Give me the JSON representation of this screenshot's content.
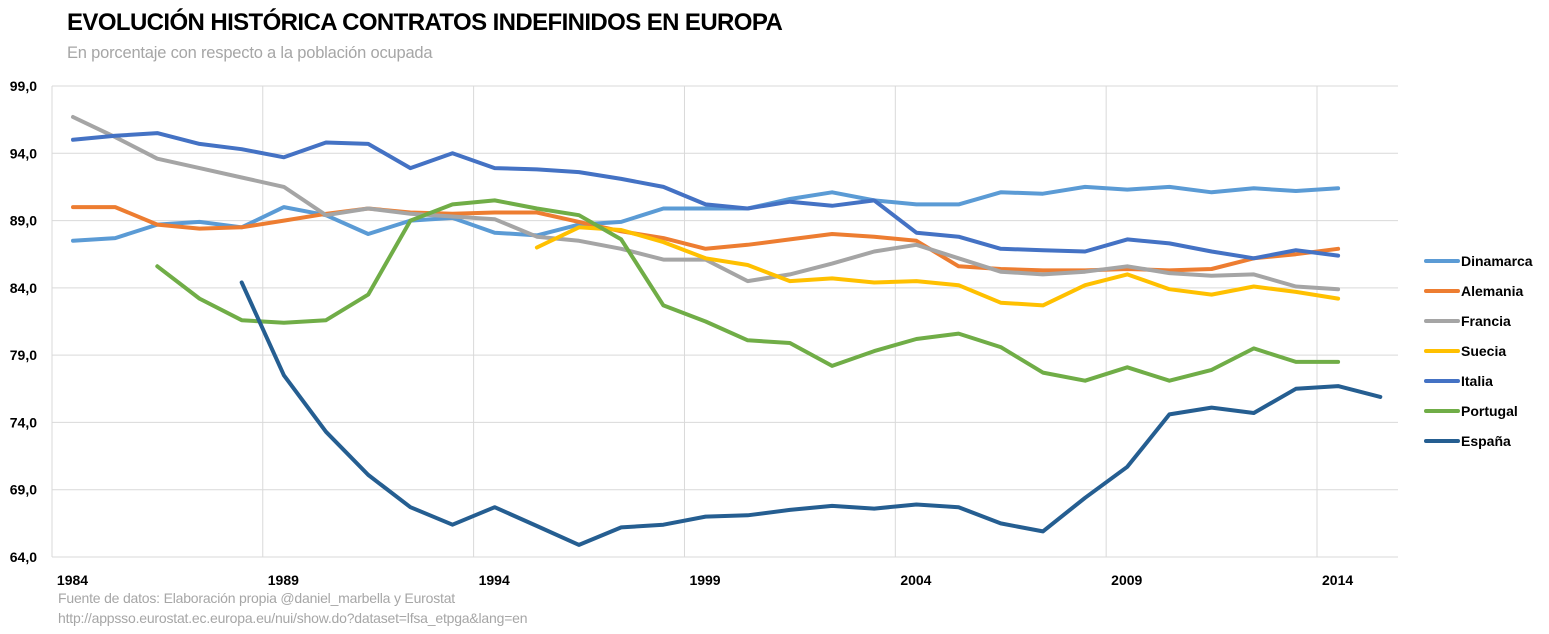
{
  "header": {
    "title": "EVOLUCIÓN HISTÓRICA CONTRATOS INDEFINIDOS EN EUROPA",
    "subtitle": "En porcentaje con respecto a la población ocupada"
  },
  "footer": {
    "source_line1": "Fuente de datos: Elaboración propia @daniel_marbella y Eurostat",
    "source_line2": "http://appsso.eurostat.ec.europa.eu/nui/show.do?dataset=lfsa_etpga&lang=en"
  },
  "chart_data": {
    "type": "line",
    "title": "EVOLUCIÓN HISTÓRICA CONTRATOS INDEFINIDOS EN EUROPA",
    "subtitle": "En porcentaje con respecto a la población ocupada",
    "xlabel": "",
    "ylabel": "",
    "ylim": [
      64.0,
      99.0
    ],
    "xlim": [
      1984,
      2015
    ],
    "yticks": [
      "64,0",
      "69,0",
      "74,0",
      "79,0",
      "84,0",
      "89,0",
      "94,0",
      "99,0"
    ],
    "ytick_values": [
      64,
      69,
      74,
      79,
      84,
      89,
      94,
      99
    ],
    "xticks": [
      "1984",
      "1989",
      "1994",
      "1999",
      "2004",
      "2009",
      "2014"
    ],
    "xtick_values": [
      1984,
      1989,
      1994,
      1999,
      2004,
      2009,
      2014
    ],
    "grid": true,
    "legend_position": "right",
    "x": [
      1984,
      1985,
      1986,
      1987,
      1988,
      1989,
      1990,
      1991,
      1992,
      1993,
      1994,
      1995,
      1996,
      1997,
      1998,
      1999,
      2000,
      2001,
      2002,
      2003,
      2004,
      2005,
      2006,
      2007,
      2008,
      2009,
      2010,
      2011,
      2012,
      2013,
      2014,
      2015
    ],
    "series": [
      {
        "name": "Dinamarca",
        "color": "#5B9BD5",
        "values": [
          87.5,
          87.7,
          88.7,
          88.9,
          88.5,
          90.0,
          89.4,
          88.0,
          89.0,
          89.2,
          88.1,
          87.9,
          88.7,
          88.9,
          89.9,
          89.9,
          89.9,
          90.6,
          91.1,
          90.5,
          90.2,
          90.2,
          91.1,
          91.0,
          91.5,
          91.3,
          91.5,
          91.1,
          91.4,
          91.2,
          91.4,
          null
        ]
      },
      {
        "name": "Alemania",
        "color": "#ED7D31",
        "values": [
          90.0,
          90.0,
          88.7,
          88.4,
          88.5,
          89.0,
          89.5,
          89.9,
          89.6,
          89.5,
          89.6,
          89.6,
          88.9,
          88.2,
          87.7,
          86.9,
          87.2,
          87.6,
          88.0,
          87.8,
          87.5,
          85.6,
          85.4,
          85.3,
          85.3,
          85.4,
          85.3,
          85.4,
          86.2,
          86.5,
          86.9,
          null
        ]
      },
      {
        "name": "Francia",
        "color": "#A5A5A5",
        "values": [
          96.7,
          95.2,
          93.6,
          92.9,
          92.2,
          91.5,
          89.4,
          89.9,
          89.5,
          89.3,
          89.1,
          87.8,
          87.5,
          86.9,
          86.1,
          86.1,
          84.5,
          85.0,
          85.8,
          86.7,
          87.2,
          86.2,
          85.2,
          85.0,
          85.2,
          85.6,
          85.1,
          84.9,
          85.0,
          84.1,
          83.9,
          null
        ]
      },
      {
        "name": "Suecia",
        "color": "#FFC000",
        "values": [
          null,
          null,
          null,
          null,
          null,
          null,
          null,
          null,
          null,
          null,
          null,
          87.0,
          88.5,
          88.3,
          87.4,
          86.2,
          85.7,
          84.5,
          84.7,
          84.4,
          84.5,
          84.2,
          82.9,
          82.7,
          84.2,
          85.0,
          83.9,
          83.5,
          84.1,
          83.7,
          83.2,
          null
        ]
      },
      {
        "name": "Italia",
        "color": "#4472C4",
        "values": [
          95.0,
          95.3,
          95.5,
          94.7,
          94.3,
          93.7,
          94.8,
          94.7,
          92.9,
          94.0,
          92.9,
          92.8,
          92.6,
          92.1,
          91.5,
          90.2,
          89.9,
          90.4,
          90.1,
          90.5,
          88.1,
          87.8,
          86.9,
          86.8,
          86.7,
          87.6,
          87.3,
          86.7,
          86.2,
          86.8,
          86.4,
          null
        ]
      },
      {
        "name": "Portugal",
        "color": "#70AD47",
        "values": [
          null,
          null,
          85.6,
          83.2,
          81.6,
          81.4,
          81.6,
          83.5,
          89.0,
          90.2,
          90.5,
          89.9,
          89.4,
          87.6,
          82.7,
          81.5,
          80.1,
          79.9,
          78.2,
          79.3,
          80.2,
          80.6,
          79.6,
          77.7,
          77.1,
          78.1,
          77.1,
          77.9,
          79.5,
          78.5,
          78.5,
          null
        ]
      },
      {
        "name": "España",
        "color": "#255E91",
        "values": [
          null,
          null,
          null,
          null,
          84.4,
          77.5,
          73.3,
          70.1,
          67.7,
          66.4,
          67.7,
          66.3,
          64.9,
          66.2,
          66.4,
          67.0,
          67.1,
          67.5,
          67.8,
          67.6,
          67.9,
          67.7,
          66.5,
          65.9,
          68.4,
          70.7,
          74.6,
          75.1,
          74.7,
          76.5,
          76.7,
          75.9
        ]
      }
    ]
  }
}
